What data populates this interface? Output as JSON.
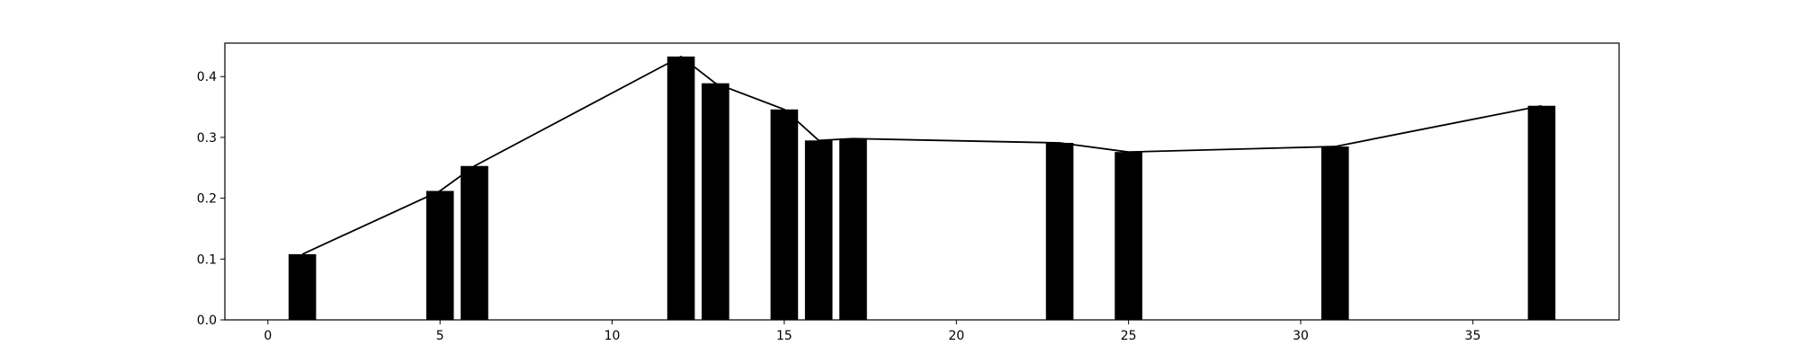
{
  "chart_data": {
    "type": "bar",
    "title": "",
    "xlabel": "",
    "ylabel": "",
    "xlim": [
      -1.25,
      39.25
    ],
    "ylim": [
      0,
      0.455
    ],
    "xticks": [
      0,
      5,
      10,
      15,
      20,
      25,
      30,
      35
    ],
    "xtick_labels": [
      "0",
      "5",
      "10",
      "15",
      "20",
      "25",
      "30",
      "35"
    ],
    "yticks": [
      0.0,
      0.1,
      0.2,
      0.3,
      0.4
    ],
    "ytick_labels": [
      "0.0",
      "0.1",
      "0.2",
      "0.3",
      "0.4"
    ],
    "grid": false,
    "legend": "none",
    "bar_color": "#000000",
    "line_color": "#000000",
    "bar_width": 0.8,
    "series": [
      {
        "kind": "bar",
        "x": [
          1,
          5,
          6,
          12,
          13,
          15,
          16,
          17,
          23,
          25,
          31,
          37
        ],
        "values": [
          0.108,
          0.212,
          0.253,
          0.433,
          0.389,
          0.346,
          0.295,
          0.298,
          0.291,
          0.276,
          0.285,
          0.352
        ]
      },
      {
        "kind": "line",
        "x": [
          1,
          5,
          6,
          12,
          13,
          15,
          16,
          17,
          23,
          25,
          31,
          37
        ],
        "values": [
          0.108,
          0.212,
          0.253,
          0.433,
          0.389,
          0.346,
          0.295,
          0.298,
          0.291,
          0.276,
          0.285,
          0.352
        ]
      }
    ]
  }
}
